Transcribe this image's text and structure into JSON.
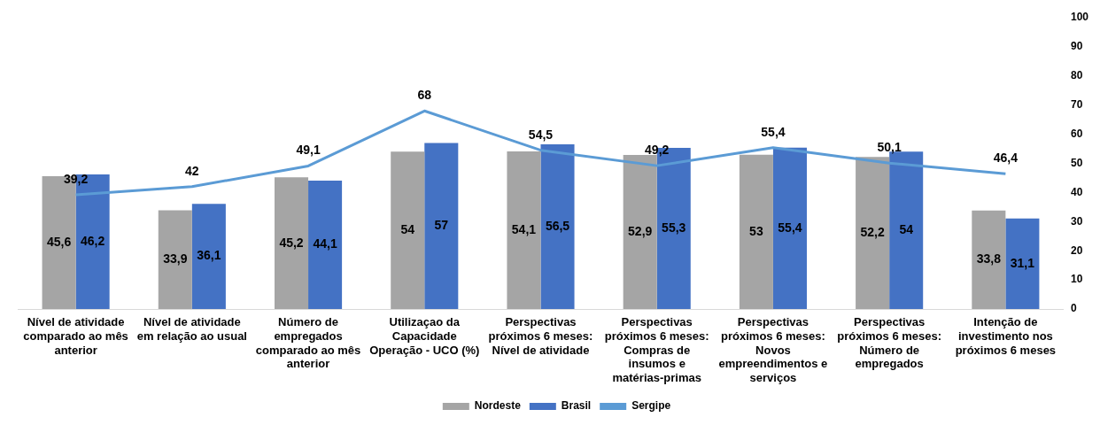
{
  "chart_data": {
    "type": "bar",
    "categories": [
      "Nível de atividade comparado ao mês anterior",
      "Nível de atividade em relação ao usual",
      "Número de empregados comparado ao mês anterior",
      "Utilizaçao da Capacidade Operação - UCO (%)",
      "Perspectivas próximos 6 meses: Nível de atividade",
      "Perspectivas próximos 6 meses: Compras de insumos e matérias-primas",
      "Perspectivas próximos 6 meses: Novos empreendimentos e serviços",
      "Perspectivas próximos 6 meses: Número de empregados",
      "Intenção de investimento nos próximos 6 meses"
    ],
    "series": [
      {
        "name": "Nordeste",
        "color": "#a5a5a5",
        "values": [
          45.6,
          33.9,
          45.2,
          54,
          54.1,
          52.9,
          53,
          52.2,
          33.8
        ],
        "value_labels": [
          "45,6",
          "33,9",
          "45,2",
          "54",
          "54,1",
          "52,9",
          "53",
          "52,2",
          "33,8"
        ]
      },
      {
        "name": "Brasil",
        "color": "#4472c4",
        "values": [
          46.2,
          36.1,
          44.1,
          57,
          56.5,
          55.3,
          55.4,
          54,
          31.1
        ],
        "value_labels": [
          "46,2",
          "36,1",
          "44,1",
          "57",
          "56,5",
          "55,3",
          "55,4",
          "54",
          "31,1"
        ]
      },
      {
        "name": "Sergipe",
        "type": "line",
        "color": "#5b9bd5",
        "values": [
          39.2,
          42,
          49.1,
          68,
          54.5,
          49.2,
          55.4,
          50.1,
          46.4
        ],
        "value_labels": [
          "39,2",
          "42",
          "49,1",
          "68",
          "54,5",
          "49,2",
          "55,4",
          "50,1",
          "46,4"
        ]
      }
    ],
    "ylim": [
      0,
      100
    ],
    "yticks": [
      0,
      10,
      20,
      30,
      40,
      50,
      60,
      70,
      80,
      90,
      100
    ],
    "grid": false,
    "legend": "bottom",
    "marker": "none"
  }
}
